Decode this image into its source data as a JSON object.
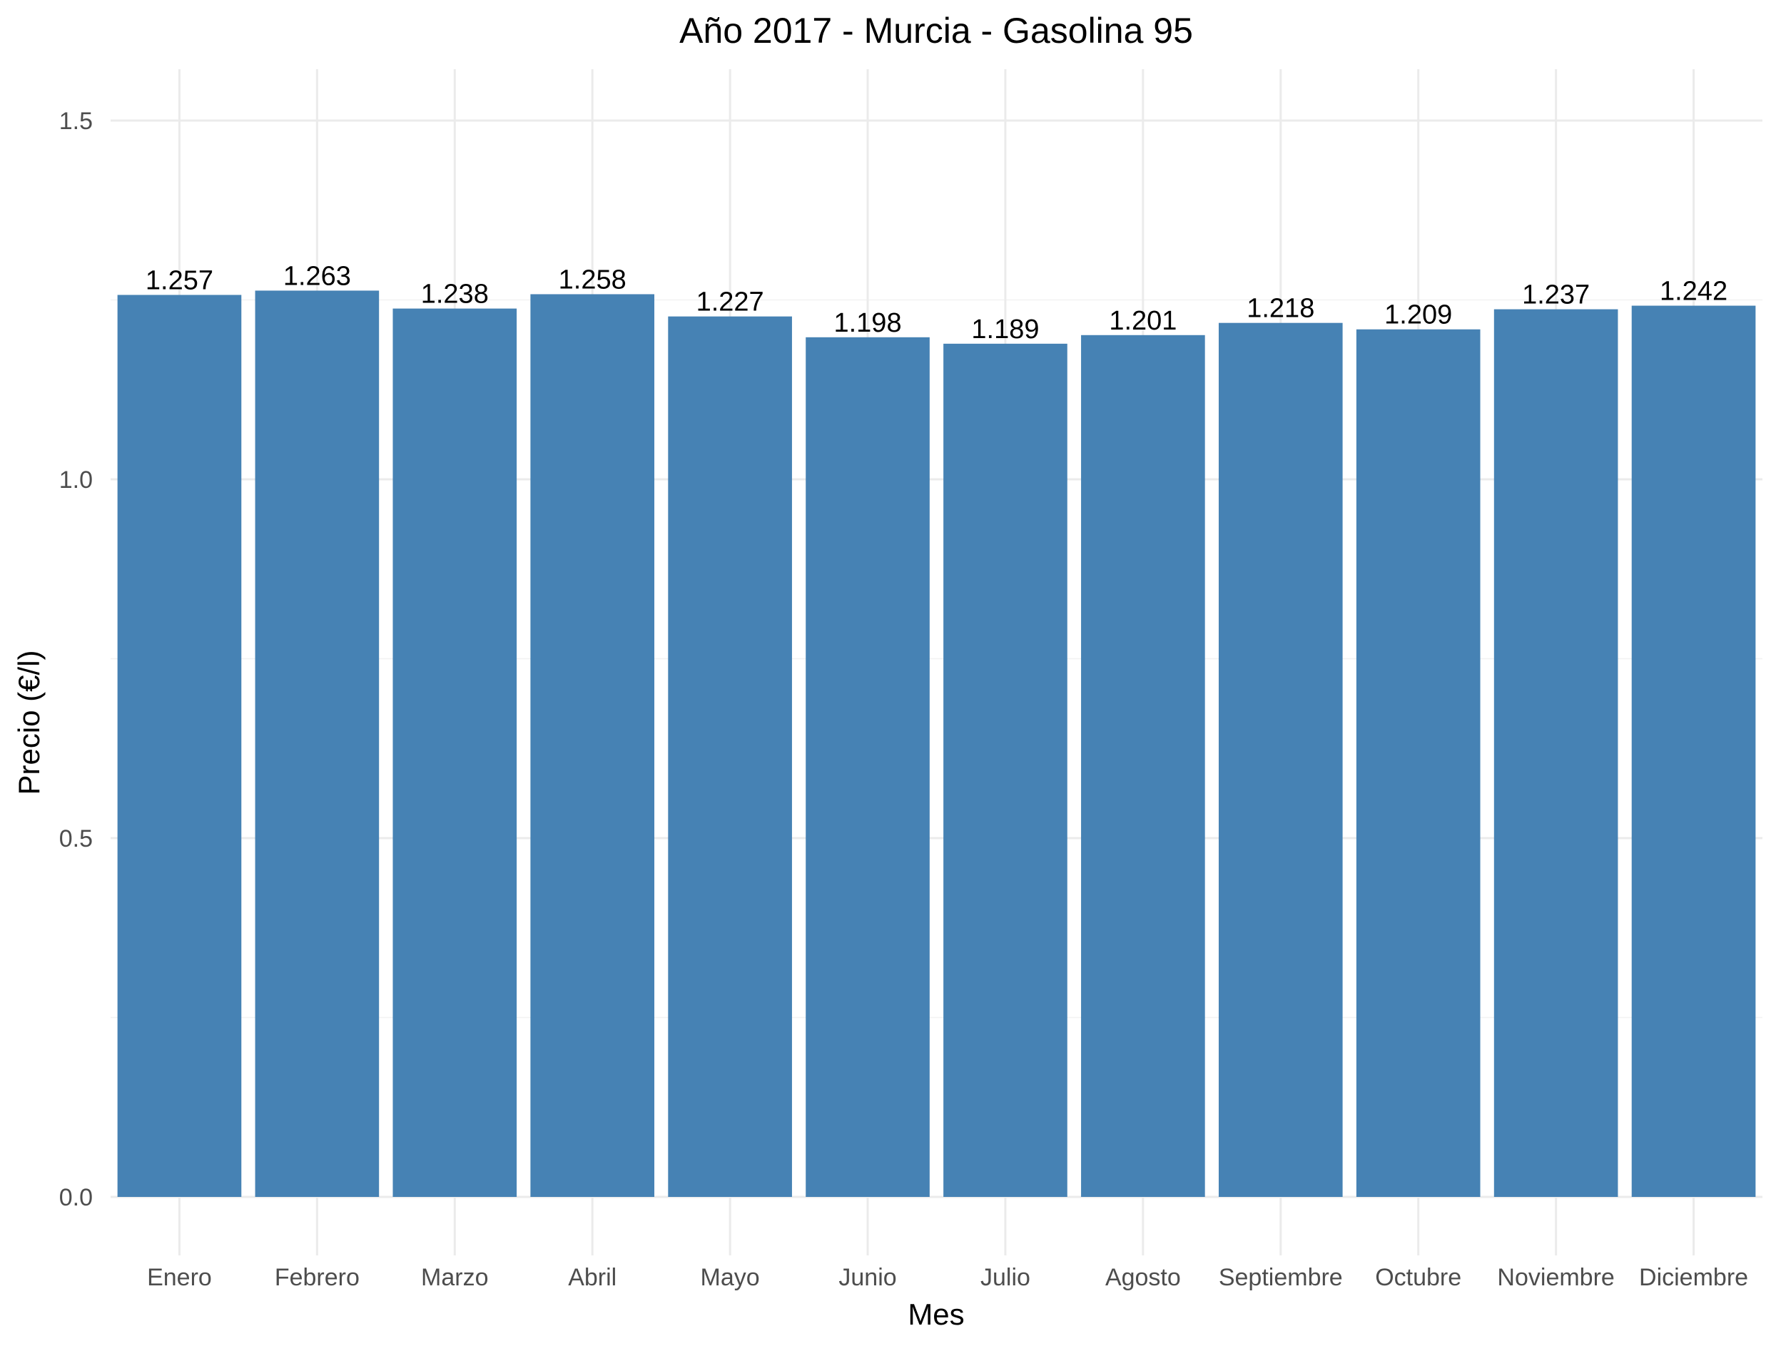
{
  "chart_data": {
    "type": "bar",
    "title": "Año 2017 - Murcia - Gasolina 95",
    "xlabel": "Mes",
    "ylabel": "Precio (€/l)",
    "categories": [
      "Enero",
      "Febrero",
      "Marzo",
      "Abril",
      "Mayo",
      "Junio",
      "Julio",
      "Agosto",
      "Septiembre",
      "Octubre",
      "Noviembre",
      "Diciembre"
    ],
    "values": [
      1.257,
      1.263,
      1.238,
      1.258,
      1.227,
      1.198,
      1.189,
      1.201,
      1.218,
      1.209,
      1.237,
      1.242
    ],
    "value_labels": [
      "1.257",
      "1.263",
      "1.238",
      "1.258",
      "1.227",
      "1.198",
      "1.189",
      "1.201",
      "1.218",
      "1.209",
      "1.237",
      "1.242"
    ],
    "yticks": [
      0,
      0.5,
      1.0,
      1.5
    ],
    "ytick_labels": [
      "0.0",
      "0.5",
      "1.0",
      "1.5"
    ],
    "ylim": [
      0,
      1.5
    ],
    "grid": true,
    "legend": "none",
    "bar_color": "#4682b4"
  }
}
